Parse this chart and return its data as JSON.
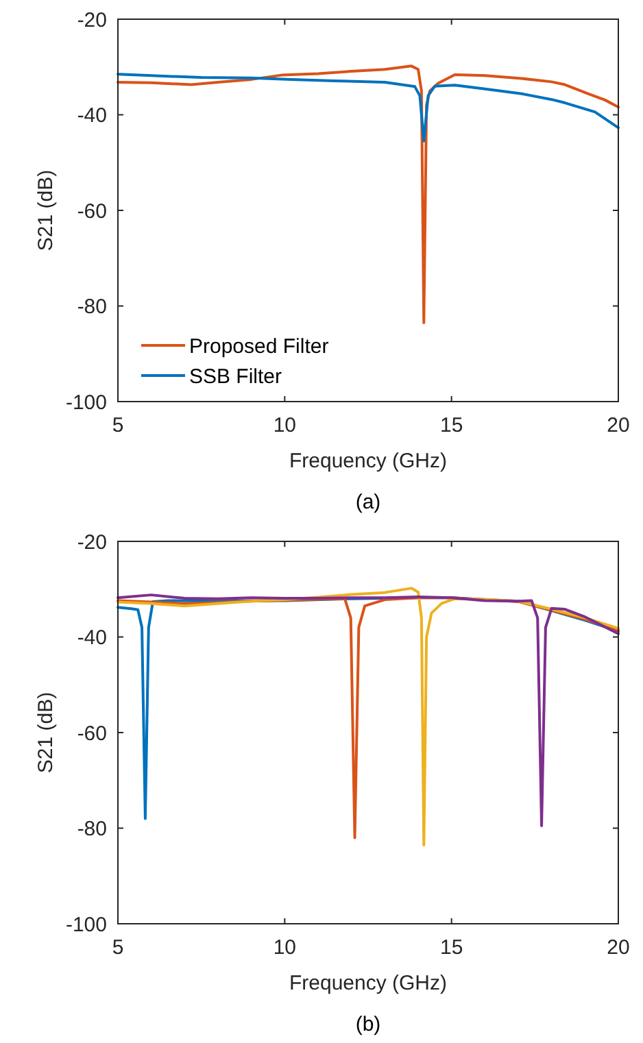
{
  "chart_data": [
    {
      "type": "line",
      "xlabel": "Frequency (GHz)",
      "ylabel": "S21 (dB)",
      "xlim": [
        5,
        20
      ],
      "ylim": [
        -100,
        -20
      ],
      "xticks": [
        5,
        10,
        15,
        20
      ],
      "yticks": [
        -100,
        -80,
        -60,
        -40,
        -20
      ],
      "grid": false,
      "legend": "bottom left",
      "annotations": [
        "(a)"
      ],
      "series": [
        {
          "name": "Proposed Filter",
          "color": "#d95319",
          "x": [
            5,
            6,
            7.2,
            8,
            9,
            9.9,
            11,
            12,
            13,
            13.8,
            14.0,
            14.1,
            14.17,
            14.25,
            14.35,
            14.6,
            15.1,
            16,
            17.1,
            18,
            18.4,
            19.1,
            19.6,
            20
          ],
          "values": [
            -33.2,
            -33.3,
            -33.7,
            -33.2,
            -32.6,
            -31.7,
            -31.4,
            -30.9,
            -30.5,
            -29.8,
            -30.5,
            -35,
            -83.5,
            -38,
            -35,
            -33.4,
            -31.6,
            -31.8,
            -32.4,
            -33.1,
            -33.7,
            -35.6,
            -36.9,
            -38.4
          ]
        },
        {
          "name": "SSB Filter",
          "color": "#0072bd",
          "x": [
            5,
            6,
            7.5,
            9,
            10.2,
            11.5,
            13,
            13.9,
            14.05,
            14.17,
            14.3,
            14.5,
            15.1,
            16,
            17.1,
            18,
            18.4,
            19.3,
            20
          ],
          "values": [
            -31.5,
            -31.8,
            -32.2,
            -32.3,
            -32.6,
            -32.9,
            -33.2,
            -34.1,
            -36,
            -45.5,
            -36,
            -34,
            -33.8,
            -34.6,
            -35.6,
            -36.8,
            -37.5,
            -39.4,
            -42.7
          ]
        }
      ]
    },
    {
      "type": "line",
      "xlabel": "Frequency (GHz)",
      "ylabel": "S21 (dB)",
      "xlim": [
        5,
        20
      ],
      "ylim": [
        -100,
        -20
      ],
      "xticks": [
        5,
        10,
        15,
        20
      ],
      "yticks": [
        -100,
        -80,
        -60,
        -40,
        -20
      ],
      "grid": false,
      "legend": false,
      "annotations": [
        "(b)"
      ],
      "series": [
        {
          "color": "#0072bd",
          "x": [
            5,
            5.4,
            5.6,
            5.72,
            5.82,
            5.92,
            6.05,
            6.5,
            8,
            10,
            12,
            14,
            15,
            16,
            17,
            18,
            19,
            20
          ],
          "values": [
            -33.8,
            -34.1,
            -34.3,
            -38,
            -78,
            -38,
            -32.6,
            -32.4,
            -32.5,
            -32.4,
            -32,
            -31.8,
            -31.8,
            -32.2,
            -32.5,
            -34.5,
            -36.5,
            -38.8
          ]
        },
        {
          "color": "#d95319",
          "x": [
            5,
            6,
            7,
            8,
            9,
            10,
            11,
            11.8,
            11.98,
            12.1,
            12.22,
            12.4,
            13,
            14,
            15,
            16,
            17,
            18,
            19,
            20
          ],
          "values": [
            -32.4,
            -32.7,
            -33,
            -32.8,
            -32.5,
            -32.3,
            -32.1,
            -32,
            -36,
            -82,
            -38,
            -33.5,
            -32.2,
            -31.8,
            -31.8,
            -32.2,
            -32.6,
            -34.4,
            -36.3,
            -38.6
          ]
        },
        {
          "color": "#edb120",
          "x": [
            5,
            6,
            7,
            8,
            9,
            10,
            11,
            12,
            13,
            13.8,
            14.0,
            14.1,
            14.17,
            14.25,
            14.4,
            14.7,
            15.1,
            16,
            17,
            18,
            19,
            20
          ],
          "values": [
            -32.7,
            -33,
            -33.5,
            -33,
            -32.5,
            -32.2,
            -31.7,
            -31.1,
            -30.7,
            -29.8,
            -30.6,
            -36,
            -83.5,
            -40,
            -35,
            -33,
            -32,
            -32.1,
            -32.5,
            -34.2,
            -36,
            -38.2
          ]
        },
        {
          "color": "#7e2f8e",
          "x": [
            5,
            6,
            7,
            8,
            9,
            10,
            11,
            12,
            13,
            14,
            15,
            16,
            17,
            17.4,
            17.58,
            17.7,
            17.82,
            18,
            18.4,
            19,
            20
          ],
          "values": [
            -31.8,
            -31.2,
            -31.9,
            -32,
            -31.8,
            -31.9,
            -31.9,
            -31.8,
            -31.8,
            -31.6,
            -31.8,
            -32.4,
            -32.5,
            -32.4,
            -36,
            -79.5,
            -38,
            -34,
            -34.2,
            -35.8,
            -39.3
          ]
        }
      ]
    }
  ]
}
